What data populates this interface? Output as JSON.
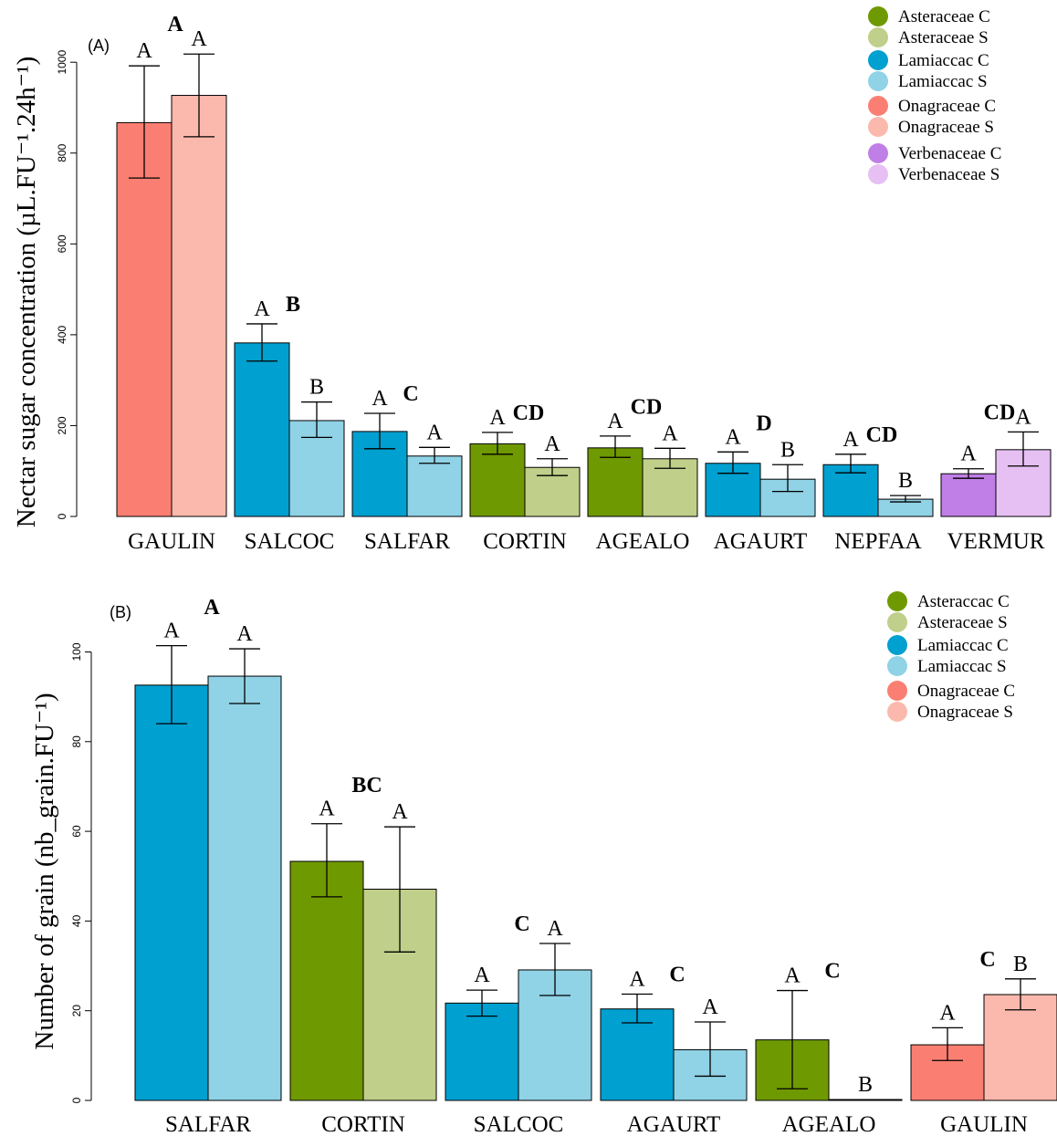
{
  "colors": {
    "asteraceae_c": "#6f9900",
    "asteraceae_s": "#c0cf8a",
    "lamiaceae_c": "#00a0d0",
    "lamiaceae_s": "#90d2e6",
    "onagraceae_c": "#fa7f72",
    "onagraceae_s": "#fbb9ad",
    "verbenaceae_c": "#c07fe6",
    "verbenaceae_s": "#e6bff3"
  },
  "chart_data": [
    {
      "type": "bar",
      "panel_label": "(A)",
      "title": "",
      "xlabel": "",
      "ylabel": "Nectar sugar concentration (µL.FU⁻¹.24h⁻¹)",
      "ylim": [
        0,
        1000
      ],
      "yticks": [
        0,
        200,
        400,
        600,
        800,
        1000
      ],
      "legend_position": "top-right",
      "legend": [
        {
          "label": "Asteraceae C",
          "color_key": "asteraceae_c"
        },
        {
          "label": "Asteraceae S",
          "color_key": "asteraceae_s"
        },
        {
          "label": "Lamiaccac C",
          "color_key": "lamiaceae_c"
        },
        {
          "label": "Lamiaccac S",
          "color_key": "lamiaceae_s"
        },
        {
          "label": "Onagraceae C",
          "color_key": "onagraceae_c"
        },
        {
          "label": "Onagraceae S",
          "color_key": "onagraceae_s"
        },
        {
          "label": "Verbenaceae C",
          "color_key": "verbenaceae_c"
        },
        {
          "label": "Verbenaceae S",
          "color_key": "verbenaceae_s"
        }
      ],
      "groups": [
        {
          "category": "GAULIN",
          "family": "onagraceae",
          "group_letter": "A",
          "bars": [
            {
              "value": 867,
              "err_low": 745,
              "err_high": 992,
              "letter": "A"
            },
            {
              "value": 927,
              "err_low": 836,
              "err_high": 1018,
              "letter": "A"
            }
          ]
        },
        {
          "category": "SALCOC",
          "family": "lamiaceae",
          "group_letter": "B",
          "bars": [
            {
              "value": 382,
              "err_low": 342,
              "err_high": 424,
              "letter": "A"
            },
            {
              "value": 211,
              "err_low": 174,
              "err_high": 252,
              "letter": "B"
            }
          ]
        },
        {
          "category": "SALFAR",
          "family": "lamiaceae",
          "group_letter": "C",
          "bars": [
            {
              "value": 187,
              "err_low": 149,
              "err_high": 227,
              "letter": "A"
            },
            {
              "value": 133,
              "err_low": 117,
              "err_high": 152,
              "letter": "A"
            }
          ]
        },
        {
          "category": "CORTIN",
          "family": "asteraceae",
          "group_letter": "CD",
          "bars": [
            {
              "value": 160,
              "err_low": 137,
              "err_high": 185,
              "letter": "A"
            },
            {
              "value": 108,
              "err_low": 90,
              "err_high": 127,
              "letter": "A"
            }
          ]
        },
        {
          "category": "AGEALO",
          "family": "asteraceae",
          "group_letter": "CD",
          "bars": [
            {
              "value": 151,
              "err_low": 130,
              "err_high": 177,
              "letter": "A"
            },
            {
              "value": 127,
              "err_low": 106,
              "err_high": 150,
              "letter": "A"
            }
          ]
        },
        {
          "category": "AGAURT",
          "family": "lamiaceae",
          "group_letter": "D",
          "bars": [
            {
              "value": 117,
              "err_low": 95,
              "err_high": 142,
              "letter": "A"
            },
            {
              "value": 82,
              "err_low": 55,
              "err_high": 114,
              "letter": "B"
            }
          ]
        },
        {
          "category": "NEPFAA",
          "family": "lamiaceae",
          "group_letter": "CD",
          "bars": [
            {
              "value": 114,
              "err_low": 96,
              "err_high": 137,
              "letter": "A"
            },
            {
              "value": 38,
              "err_low": 32,
              "err_high": 46,
              "letter": "B"
            }
          ]
        },
        {
          "category": "VERMUR",
          "family": "verbenaceae",
          "group_letter": "CD",
          "bars": [
            {
              "value": 94,
              "err_low": 84,
              "err_high": 105,
              "letter": "A"
            },
            {
              "value": 147,
              "err_low": 111,
              "err_high": 186,
              "letter": "A"
            }
          ]
        }
      ]
    },
    {
      "type": "bar",
      "panel_label": "(B)",
      "title": "",
      "xlabel": "",
      "ylabel": "Number of grain (nb_grain.FU⁻¹)",
      "ylim": [
        0,
        100
      ],
      "yticks": [
        0,
        20,
        40,
        60,
        80,
        100
      ],
      "legend_position": "top-right",
      "legend": [
        {
          "label": "Asteraccac C",
          "color_key": "asteraceae_c"
        },
        {
          "label": "Asteraceae S",
          "color_key": "asteraceae_s"
        },
        {
          "label": "Lamiaccac C",
          "color_key": "lamiaceae_c"
        },
        {
          "label": "Lamiaccac S",
          "color_key": "lamiaceae_s"
        },
        {
          "label": "Onagraceae C",
          "color_key": "onagraceae_c"
        },
        {
          "label": "Onagraceae S",
          "color_key": "onagraceae_s"
        }
      ],
      "groups": [
        {
          "category": "SALFAR",
          "family": "lamiaceae",
          "group_letter": "A",
          "bars": [
            {
              "value": 92.6,
              "err_low": 84.0,
              "err_high": 101.4,
              "letter": "A"
            },
            {
              "value": 94.6,
              "err_low": 88.5,
              "err_high": 100.7,
              "letter": "A"
            }
          ]
        },
        {
          "category": "CORTIN",
          "family": "asteraceae",
          "group_letter": "BC",
          "bars": [
            {
              "value": 53.3,
              "err_low": 45.4,
              "err_high": 61.7,
              "letter": "A"
            },
            {
              "value": 47.1,
              "err_low": 33.1,
              "err_high": 61.0,
              "letter": "A"
            }
          ]
        },
        {
          "category": "SALCOC",
          "family": "lamiaceae",
          "group_letter": "C",
          "bars": [
            {
              "value": 21.7,
              "err_low": 18.8,
              "err_high": 24.6,
              "letter": "A"
            },
            {
              "value": 29.1,
              "err_low": 23.4,
              "err_high": 35.0,
              "letter": "A"
            }
          ]
        },
        {
          "category": "AGAURT",
          "family": "lamiaceae",
          "group_letter": "C",
          "bars": [
            {
              "value": 20.4,
              "err_low": 17.3,
              "err_high": 23.7,
              "letter": "A"
            },
            {
              "value": 11.3,
              "err_low": 5.4,
              "err_high": 17.5,
              "letter": "A"
            }
          ]
        },
        {
          "category": "AGEALO",
          "family": "asteraceae",
          "group_letter": "C",
          "bars": [
            {
              "value": 13.5,
              "err_low": 2.6,
              "err_high": 24.5,
              "letter": "A"
            },
            {
              "value": 0.2,
              "err_low": 0.2,
              "err_high": 0.2,
              "letter": "B"
            }
          ]
        },
        {
          "category": "GAULIN",
          "family": "onagraceae",
          "group_letter": "C",
          "bars": [
            {
              "value": 12.4,
              "err_low": 8.9,
              "err_high": 16.2,
              "letter": "A"
            },
            {
              "value": 23.6,
              "err_low": 20.2,
              "err_high": 27.1,
              "letter": "B"
            }
          ]
        }
      ]
    }
  ]
}
